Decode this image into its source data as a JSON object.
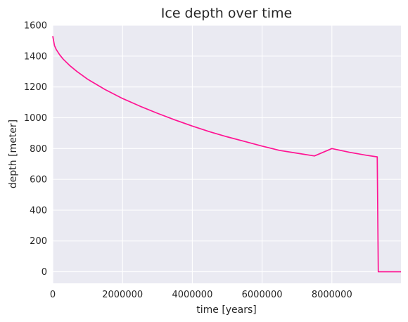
{
  "chart_data": {
    "type": "line",
    "title": "Ice depth over time",
    "xlabel": "time [years]",
    "ylabel": "depth [meter]",
    "xlim": [
      0,
      9980000
    ],
    "ylim": [
      -75,
      1600
    ],
    "xticks": [
      0,
      2000000,
      4000000,
      6000000,
      8000000
    ],
    "xtick_labels": [
      "0",
      "2000000",
      "4000000",
      "6000000",
      "8000000"
    ],
    "yticks": [
      0,
      200,
      400,
      600,
      800,
      1000,
      1200,
      1400,
      1600
    ],
    "ytick_labels": [
      "0",
      "200",
      "400",
      "600",
      "800",
      "1000",
      "1200",
      "1400",
      "1600"
    ],
    "grid": true,
    "background": "#eaeaf2",
    "series": [
      {
        "color": "#ff1493",
        "x": [
          0,
          50000,
          100000,
          200000,
          300000,
          500000,
          700000,
          1000000,
          1500000,
          2000000,
          2500000,
          3000000,
          3500000,
          4000000,
          4500000,
          5000000,
          5500000,
          6000000,
          6500000,
          7000000,
          7500000,
          8000000,
          8500000,
          9000000,
          9300000,
          9330000,
          9980000
        ],
        "y": [
          1530,
          1468,
          1443,
          1408,
          1380,
          1336,
          1299,
          1250,
          1183,
          1125,
          1075,
          1029,
          986,
          946,
          909,
          876,
          846,
          816,
          788,
          770,
          752,
          800,
          776,
          756,
          746,
          0,
          0
        ]
      }
    ]
  }
}
